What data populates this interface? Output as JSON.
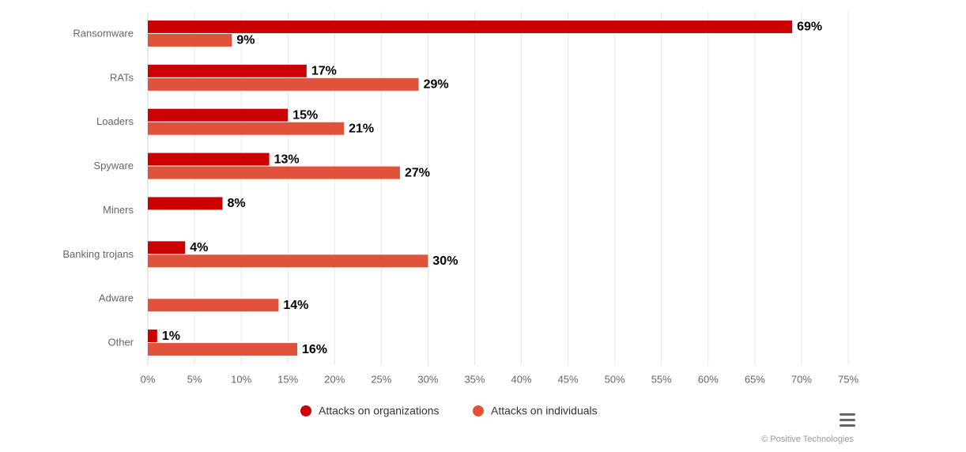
{
  "chart_data": {
    "type": "bar",
    "orientation": "horizontal",
    "categories": [
      "Ransomware",
      "RATs",
      "Loaders",
      "Spyware",
      "Miners",
      "Banking trojans",
      "Adware",
      "Other"
    ],
    "series": [
      {
        "name": "Attacks on organizations",
        "color": "#cc0000",
        "values": [
          69,
          17,
          15,
          13,
          8,
          4,
          null,
          1
        ],
        "value_labels": [
          "69%",
          "17%",
          "15%",
          "13%",
          "8%",
          "4%",
          null,
          "1%"
        ]
      },
      {
        "name": "Attacks on individuals",
        "color": "#e0533a",
        "values": [
          9,
          29,
          21,
          27,
          null,
          30,
          14,
          16
        ],
        "value_labels": [
          "9%",
          "29%",
          "21%",
          "27%",
          null,
          "30%",
          "14%",
          "16%"
        ]
      }
    ],
    "xlim": [
      0,
      75
    ],
    "xticks": [
      {
        "value": 0,
        "label": "0%"
      },
      {
        "value": 5,
        "label": "5%"
      },
      {
        "value": 10,
        "label": "10%"
      },
      {
        "value": 15,
        "label": "15%"
      },
      {
        "value": 20,
        "label": "20%"
      },
      {
        "value": 25,
        "label": "25%"
      },
      {
        "value": 30,
        "label": "30%"
      },
      {
        "value": 35,
        "label": "35%"
      },
      {
        "value": 40,
        "label": "40%"
      },
      {
        "value": 45,
        "label": "45%"
      },
      {
        "value": 50,
        "label": "50%"
      },
      {
        "value": 55,
        "label": "55%"
      },
      {
        "value": 60,
        "label": "60%"
      },
      {
        "value": 65,
        "label": "65%"
      },
      {
        "value": 70,
        "label": "70%"
      },
      {
        "value": 75,
        "label": "75%"
      }
    ],
    "grid": true,
    "legend": "bottom",
    "credit": "© Positive Technologies"
  }
}
